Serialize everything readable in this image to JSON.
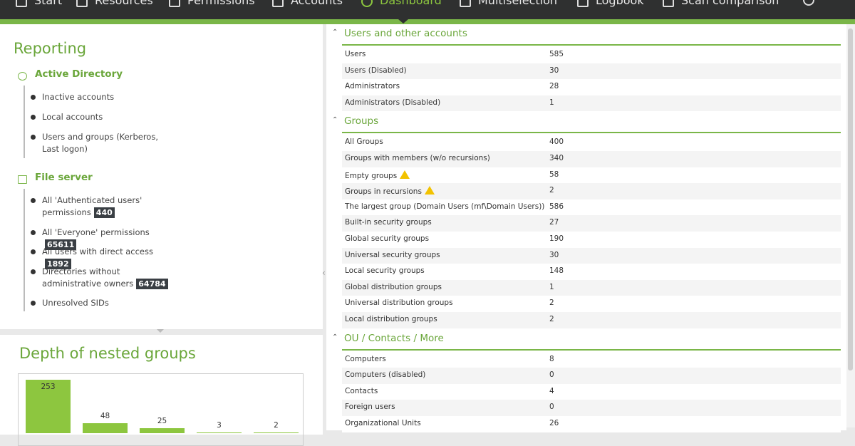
{
  "nav": {
    "items": [
      "Start",
      "Resources",
      "Permissions",
      "Accounts",
      "Dashboard",
      "Multiselection",
      "Logbook",
      "Scan comparison"
    ],
    "active": 4
  },
  "reporting": {
    "title": "Reporting",
    "sections": [
      {
        "title": "Active Directory",
        "items": [
          {
            "label": "Inactive accounts"
          },
          {
            "label": "Local accounts"
          },
          {
            "label": "Users and groups (Kerberos, Last logon)"
          }
        ]
      },
      {
        "title": "File server",
        "items": [
          {
            "label": "All 'Authenticated users' permissions",
            "count": 440
          },
          {
            "label": "All 'Everyone' permissions",
            "count": 65611
          },
          {
            "label": "All users with direct access",
            "count": 1892
          },
          {
            "label": "Directories without administrative owners",
            "count": 64784
          },
          {
            "label": "Unresolved SIDs"
          }
        ]
      }
    ]
  },
  "depth_chart": {
    "title": "Depth of nested groups",
    "values": [
      253,
      48,
      25,
      3,
      2
    ],
    "color": "#8dc63f"
  },
  "summary": {
    "sections": [
      {
        "title": "Users and other accounts",
        "rows": [
          {
            "label": "Users",
            "value": 585
          },
          {
            "label": "Users (Disabled)",
            "value": 30
          },
          {
            "label": "Administrators",
            "value": 28
          },
          {
            "label": "Administrators (Disabled)",
            "value": 1
          }
        ]
      },
      {
        "title": "Groups",
        "rows": [
          {
            "label": "All Groups",
            "value": 400
          },
          {
            "label": "Groups with members (w/o recursions)",
            "value": 340
          },
          {
            "label": "Empty groups",
            "value": 58,
            "warning": true
          },
          {
            "label": "Groups in recursions",
            "value": 2,
            "warning": true
          },
          {
            "label": "The largest group (Domain Users (mf\\Domain Users))",
            "value": 586
          },
          {
            "label": "Built-in security groups",
            "value": 27
          },
          {
            "label": "Global security groups",
            "value": 190
          },
          {
            "label": "Universal security groups",
            "value": 30
          },
          {
            "label": "Local security groups",
            "value": 148
          },
          {
            "label": "Global distribution groups",
            "value": 1
          },
          {
            "label": "Universal distribution groups",
            "value": 2
          },
          {
            "label": "Local distribution groups",
            "value": 2
          }
        ]
      },
      {
        "title": "OU / Contacts / More",
        "rows": [
          {
            "label": "Computers",
            "value": 8
          },
          {
            "label": "Computers (disabled)",
            "value": 0
          },
          {
            "label": "Contacts",
            "value": 4
          },
          {
            "label": "Foreign users",
            "value": 0
          },
          {
            "label": "Organizational Units",
            "value": 26
          }
        ]
      }
    ]
  }
}
